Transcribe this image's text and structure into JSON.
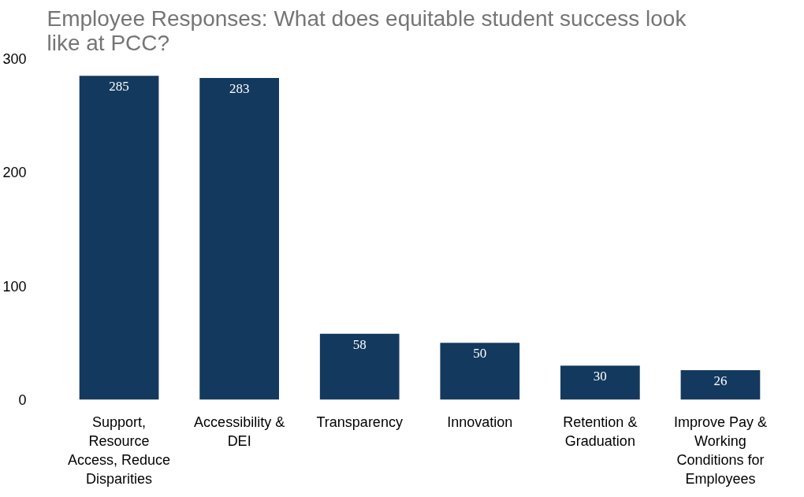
{
  "chart_data": {
    "type": "bar",
    "title": "Employee Responses: What does equitable student success look like at PCC?",
    "categories": [
      "Support, Resource Access, Reduce Disparities",
      "Accessibility & DEI",
      "Transparency",
      "Innovation",
      "Retention & Graduation",
      "Improve Pay & Working Conditions for Employees"
    ],
    "values": [
      285,
      283,
      58,
      50,
      30,
      26
    ],
    "color": "#14395e",
    "ylim": [
      0,
      300
    ],
    "yticks": [
      0,
      100,
      200,
      300
    ],
    "grid": false,
    "data_labels": true
  }
}
